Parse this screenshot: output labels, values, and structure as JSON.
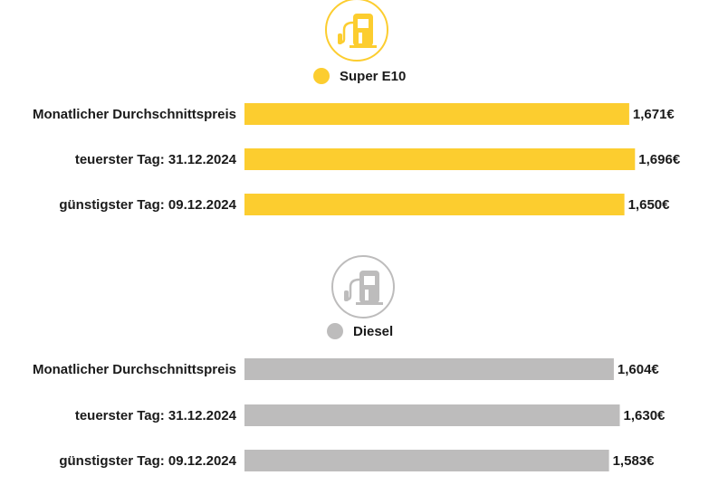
{
  "chart_data": {
    "type": "bar",
    "orientation": "horizontal",
    "categories": [
      "Monatlicher Durchschnittspreis",
      "teuerster Tag: 31.12.2024",
      "günstigster Tag: 09.12.2024"
    ],
    "series": [
      {
        "name": "Super E10",
        "color": "#FCCD2F",
        "icon": "fuel-pump-icon",
        "values": [
          1.671,
          1.696,
          1.65
        ],
        "value_labels": [
          "1,671€",
          "1,696€",
          "1,650€"
        ]
      },
      {
        "name": "Diesel",
        "color": "#BDBCBC",
        "icon": "fuel-pump-icon",
        "values": [
          1.604,
          1.63,
          1.583
        ],
        "value_labels": [
          "1,604€",
          "1,630€",
          "1,583€"
        ]
      }
    ],
    "grid": false,
    "axes_visible": false
  }
}
